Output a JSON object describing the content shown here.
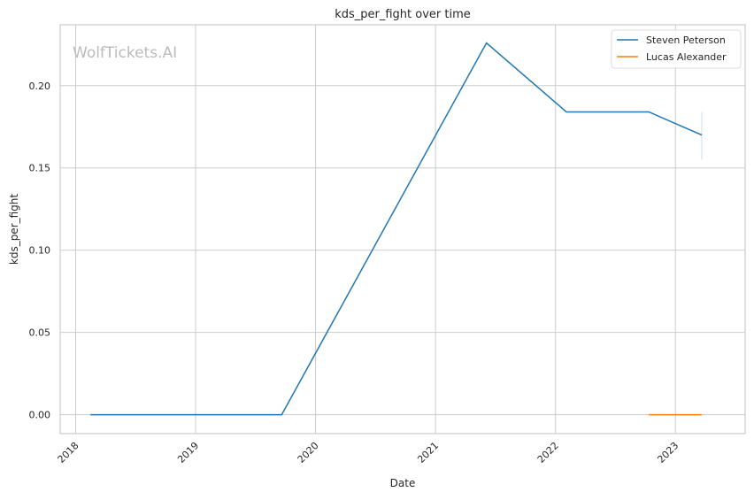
{
  "watermark": "WolfTickets.AI",
  "chart_data": {
    "type": "line",
    "title": "kds_per_fight over time",
    "xlabel": "Date",
    "ylabel": "kds_per_fight",
    "xlim": [
      "2017-11-15",
      "2023-08-01"
    ],
    "ylim": [
      -0.0115,
      0.237
    ],
    "x_ticks": [
      "2018",
      "2019",
      "2020",
      "2021",
      "2022",
      "2023"
    ],
    "y_ticks": [
      "0.00",
      "0.05",
      "0.10",
      "0.15",
      "0.20"
    ],
    "y_tick_values": [
      0,
      0.05,
      0.1,
      0.15,
      0.2
    ],
    "grid": true,
    "legend": "top-right",
    "series": [
      {
        "name": "Steven Peterson",
        "color": "#1f77b4",
        "x": [
          "2018-02-15",
          "2019-09-20",
          "2021-06-05",
          "2022-02-03",
          "2022-10-12",
          "2023-03-22"
        ],
        "y": [
          0,
          0,
          0.226,
          0.184,
          0.184,
          0.17
        ],
        "interval_at_last": [
          0.155,
          0.184
        ]
      },
      {
        "name": "Lucas Alexander",
        "color": "#ff7f0e",
        "x": [
          "2022-10-12",
          "2023-03-22"
        ],
        "y": [
          0,
          0
        ]
      }
    ]
  }
}
